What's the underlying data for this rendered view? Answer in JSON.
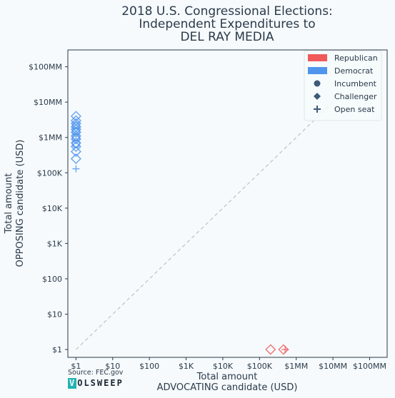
{
  "chart_data": {
    "type": "scatter",
    "title_lines": [
      "2018 U.S. Congressional Elections:",
      "Independent Expenditures to",
      "DEL RAY MEDIA"
    ],
    "xlabel_lines": [
      "Total amount",
      "ADVOCATING candidate (USD)"
    ],
    "ylabel_lines": [
      "Total amount",
      "OPPOSING candidate (USD)"
    ],
    "x_scale": "log",
    "y_scale": "log",
    "xlim": [
      0.6,
      300000000
    ],
    "ylim": [
      0.6,
      300000000
    ],
    "x_ticks": [
      1,
      10,
      100,
      1000,
      10000,
      100000,
      1000000,
      10000000,
      100000000
    ],
    "x_tick_labels": [
      "$1",
      "$10",
      "$100",
      "$1K",
      "$10K",
      "$100K",
      "$1MM",
      "$10MM",
      "$100MM"
    ],
    "y_ticks": [
      1,
      10,
      100,
      1000,
      10000,
      100000,
      1000000,
      10000000,
      100000000
    ],
    "y_tick_labels": [
      "$1",
      "$10",
      "$100",
      "$1K",
      "$10K",
      "$100K",
      "$1MM",
      "$10MM",
      "$100MM"
    ],
    "grid": false,
    "reference_line": {
      "style": "dashed",
      "from": [
        1,
        1
      ],
      "to": [
        10000000,
        10000000
      ],
      "color": "#bbc2c8"
    },
    "legend": {
      "placement": "top-right",
      "entries": [
        {
          "label": "Republican",
          "kind": "patch",
          "color": "#f05a5a"
        },
        {
          "label": "Democrat",
          "kind": "patch",
          "color": "#4f95ee"
        },
        {
          "label": "Incumbent",
          "kind": "marker",
          "marker": "circle",
          "color": "#3d5a7a"
        },
        {
          "label": "Challenger",
          "kind": "marker",
          "marker": "diamond",
          "color": "#3d5a7a"
        },
        {
          "label": "Open seat",
          "kind": "marker",
          "marker": "plus",
          "color": "#3d5a7a"
        }
      ]
    },
    "series": [
      {
        "party": "Democrat",
        "color": "#4f95ee",
        "points": [
          {
            "x": 1,
            "y": 4000000,
            "status": "Challenger"
          },
          {
            "x": 1,
            "y": 3000000,
            "status": "Challenger"
          },
          {
            "x": 1,
            "y": 2500000,
            "status": "Challenger"
          },
          {
            "x": 1,
            "y": 2000000,
            "status": "Challenger"
          },
          {
            "x": 1,
            "y": 1700000,
            "status": "Challenger"
          },
          {
            "x": 1,
            "y": 1400000,
            "status": "Challenger"
          },
          {
            "x": 1,
            "y": 1100000,
            "status": "Challenger"
          },
          {
            "x": 1,
            "y": 900000,
            "status": "Challenger"
          },
          {
            "x": 1,
            "y": 700000,
            "status": "Challenger"
          },
          {
            "x": 1,
            "y": 550000,
            "status": "Challenger"
          },
          {
            "x": 1,
            "y": 400000,
            "status": "Challenger"
          },
          {
            "x": 1,
            "y": 250000,
            "status": "Challenger"
          },
          {
            "x": 1,
            "y": 2200000,
            "status": "Incumbent"
          },
          {
            "x": 1,
            "y": 1500000,
            "status": "Incumbent"
          },
          {
            "x": 1,
            "y": 1000000,
            "status": "Incumbent"
          },
          {
            "x": 1,
            "y": 650000,
            "status": "Incumbent"
          },
          {
            "x": 1,
            "y": 130000,
            "status": "Open seat"
          }
        ]
      },
      {
        "party": "Republican",
        "color": "#f05a5a",
        "points": [
          {
            "x": 200000,
            "y": 1,
            "status": "Challenger"
          },
          {
            "x": 450000,
            "y": 1,
            "status": "Challenger"
          },
          {
            "x": 500000,
            "y": 1,
            "status": "Open seat"
          }
        ]
      }
    ]
  },
  "footer": {
    "source": "Source: FEC.gov",
    "brand_first": "V",
    "brand_rest": "OLSWEEP"
  }
}
